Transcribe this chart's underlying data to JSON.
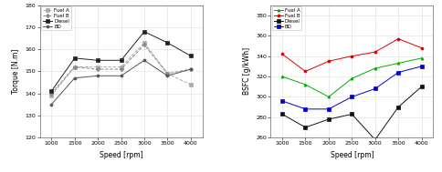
{
  "speed": [
    1000,
    1500,
    2000,
    2500,
    3000,
    3500,
    4000
  ],
  "torque": {
    "Fuel A": [
      139,
      152,
      152,
      152,
      163,
      149,
      144
    ],
    "Fuel B": [
      140,
      152,
      151,
      151,
      162,
      149,
      151
    ],
    "Diesel": [
      141,
      156,
      155,
      155,
      168,
      163,
      157
    ],
    "BD": [
      135,
      147,
      148,
      148,
      155,
      148,
      151
    ]
  },
  "torque_colors": {
    "Fuel A": "#aaaaaa",
    "Fuel B": "#888888",
    "Diesel": "#222222",
    "BD": "#555555"
  },
  "torque_markers": {
    "Fuel A": "s",
    "Fuel B": "D",
    "Diesel": "s",
    "BD": "o"
  },
  "torque_linestyles": {
    "Fuel A": "--",
    "Fuel B": "--",
    "Diesel": "-",
    "BD": "-"
  },
  "torque_ylim": [
    120,
    180
  ],
  "torque_yticks": [
    120,
    130,
    140,
    150,
    160,
    170,
    180
  ],
  "torque_ylabel": "Torque [N.m]",
  "bsfc": {
    "Fuel A": [
      320,
      312,
      300,
      318,
      328,
      333,
      338
    ],
    "Fuel B": [
      342,
      325,
      335,
      340,
      344,
      357,
      348
    ],
    "Diesel": [
      283,
      270,
      278,
      283,
      258,
      290,
      310
    ],
    "BD": [
      296,
      288,
      288,
      300,
      308,
      324,
      330
    ]
  },
  "bsfc_colors": {
    "Fuel A": "#00aa00",
    "Fuel B": "#dd0000",
    "Diesel": "#111111",
    "BD": "#0000cc"
  },
  "bsfc_markers": {
    "Fuel A": "^",
    "Fuel B": "o",
    "Diesel": "s",
    "BD": "s"
  },
  "bsfc_ylim": [
    260,
    390
  ],
  "bsfc_yticks": [
    260,
    280,
    300,
    320,
    340,
    360,
    380
  ],
  "bsfc_ylabel": "BSFC [g/kWh]",
  "xlabel": "Speed [rpm]",
  "xticks": [
    1000,
    1500,
    2000,
    2500,
    3000,
    3500,
    4000
  ],
  "bg_color": "#ffffff",
  "grid_color": "#dddddd",
  "legend_labels": [
    "Fuel A",
    "Fuel B",
    "Diesel",
    "BD"
  ]
}
